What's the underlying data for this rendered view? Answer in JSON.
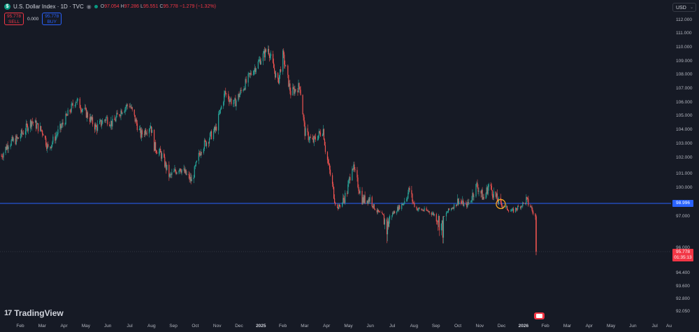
{
  "header": {
    "symbol": "U.S. Dollar Index · 1D · TVC",
    "o_label": "O",
    "o": "97.054",
    "h_label": "H",
    "h": "97.286",
    "l_label": "L",
    "l": "95.551",
    "c_label": "C",
    "c": "95.778",
    "change": "−1.279 (−1.32%)"
  },
  "trade": {
    "sell_price": "95.778",
    "sell_label": "SELL",
    "spread": "0.000",
    "buy_price": "95.778",
    "buy_label": "BUY"
  },
  "currency": "USD",
  "brand": "TradingView",
  "colors": {
    "background": "#161a25",
    "up": "#26a69a",
    "down": "#ef5350",
    "horizontal_line": "#2962ff",
    "highlight_circle": "#f5a623",
    "price_label": "#f23645"
  },
  "chart_data": {
    "type": "candlestick",
    "title": "",
    "x_labels": [
      "Feb",
      "Mar",
      "Apr",
      "May",
      "Jun",
      "Jul",
      "Aug",
      "Sep",
      "Oct",
      "Nov",
      "Dec",
      "2025",
      "Feb",
      "Mar",
      "Apr",
      "May",
      "Jun",
      "Jul",
      "Aug",
      "Sep",
      "Oct",
      "Nov",
      "Dec",
      "2026",
      "Feb",
      "Mar",
      "Apr",
      "May",
      "Jun",
      "Jul",
      "Au"
    ],
    "x_bold": [
      "2025",
      "2026"
    ],
    "y_ticks": [
      "112.000",
      "111.000",
      "110.000",
      "109.000",
      "108.000",
      "107.000",
      "106.000",
      "105.000",
      "104.000",
      "103.000",
      "102.000",
      "101.000",
      "100.000",
      "97.000",
      "96.000",
      "94.400",
      "93.600",
      "92.800",
      "92.050"
    ],
    "ylim": [
      92.0,
      112.5
    ],
    "trajectory": [
      {
        "date": "2024-01-02",
        "value": 102.3
      },
      {
        "date": "2024-01-12",
        "value": 103.2
      },
      {
        "date": "2024-01-25",
        "value": 103.5
      },
      {
        "date": "2024-02-14",
        "value": 104.8
      },
      {
        "date": "2024-03-01",
        "value": 104.0
      },
      {
        "date": "2024-03-08",
        "value": 102.8
      },
      {
        "date": "2024-03-28",
        "value": 104.5
      },
      {
        "date": "2024-04-16",
        "value": 106.3
      },
      {
        "date": "2024-05-03",
        "value": 105.2
      },
      {
        "date": "2024-05-15",
        "value": 104.3
      },
      {
        "date": "2024-05-29",
        "value": 105.0
      },
      {
        "date": "2024-06-07",
        "value": 104.6
      },
      {
        "date": "2024-06-20",
        "value": 105.6
      },
      {
        "date": "2024-07-01",
        "value": 106.0
      },
      {
        "date": "2024-07-17",
        "value": 103.8
      },
      {
        "date": "2024-07-31",
        "value": 104.5
      },
      {
        "date": "2024-08-05",
        "value": 103.0
      },
      {
        "date": "2024-08-16",
        "value": 102.3
      },
      {
        "date": "2024-08-27",
        "value": 100.8
      },
      {
        "date": "2024-09-10",
        "value": 101.5
      },
      {
        "date": "2024-09-27",
        "value": 100.5
      },
      {
        "date": "2024-10-10",
        "value": 102.8
      },
      {
        "date": "2024-10-31",
        "value": 104.2
      },
      {
        "date": "2024-11-13",
        "value": 106.8
      },
      {
        "date": "2024-11-26",
        "value": 106.0
      },
      {
        "date": "2024-12-20",
        "value": 108.2
      },
      {
        "date": "2025-01-13",
        "value": 110.0
      },
      {
        "date": "2025-01-27",
        "value": 107.5
      },
      {
        "date": "2025-02-03",
        "value": 109.5
      },
      {
        "date": "2025-02-14",
        "value": 106.8
      },
      {
        "date": "2025-02-27",
        "value": 107.3
      },
      {
        "date": "2025-03-06",
        "value": 104.0
      },
      {
        "date": "2025-03-17",
        "value": 103.3
      },
      {
        "date": "2025-04-01",
        "value": 104.2
      },
      {
        "date": "2025-04-04",
        "value": 102.8
      },
      {
        "date": "2025-04-21",
        "value": 98.3
      },
      {
        "date": "2025-05-05",
        "value": 99.8
      },
      {
        "date": "2025-05-12",
        "value": 101.7
      },
      {
        "date": "2025-05-26",
        "value": 99.2
      },
      {
        "date": "2025-06-06",
        "value": 99.3
      },
      {
        "date": "2025-06-16",
        "value": 97.8
      },
      {
        "date": "2025-06-30",
        "value": 96.6
      },
      {
        "date": "2025-07-15",
        "value": 98.2
      },
      {
        "date": "2025-08-01",
        "value": 99.9
      },
      {
        "date": "2025-08-11",
        "value": 98.2
      },
      {
        "date": "2025-08-28",
        "value": 97.8
      },
      {
        "date": "2025-09-17",
        "value": 96.6
      },
      {
        "date": "2025-09-24",
        "value": 97.8
      },
      {
        "date": "2025-10-09",
        "value": 99.2
      },
      {
        "date": "2025-10-20",
        "value": 98.6
      },
      {
        "date": "2025-11-04",
        "value": 100.2
      },
      {
        "date": "2025-11-14",
        "value": 99.3
      },
      {
        "date": "2025-11-21",
        "value": 100.2
      },
      {
        "date": "2025-12-08",
        "value": 98.8
      },
      {
        "date": "2025-12-24",
        "value": 97.8
      },
      {
        "date": "2026-01-13",
        "value": 99.2
      },
      {
        "date": "2026-01-20",
        "value": 98.4
      },
      {
        "date": "2026-01-23",
        "value": 97.4
      },
      {
        "date": "2026-01-26",
        "value": 96.9
      },
      {
        "date": "2026-01-27",
        "value": 95.78
      }
    ],
    "horizontal_line": {
      "value": 98.996,
      "label": "98.996"
    },
    "last_price": {
      "value": 95.778,
      "label": "95.778",
      "countdown": "01:35:13"
    },
    "highlight": {
      "date": "2025-12-08",
      "value": 98.9
    },
    "grid": false,
    "legend": "none"
  }
}
